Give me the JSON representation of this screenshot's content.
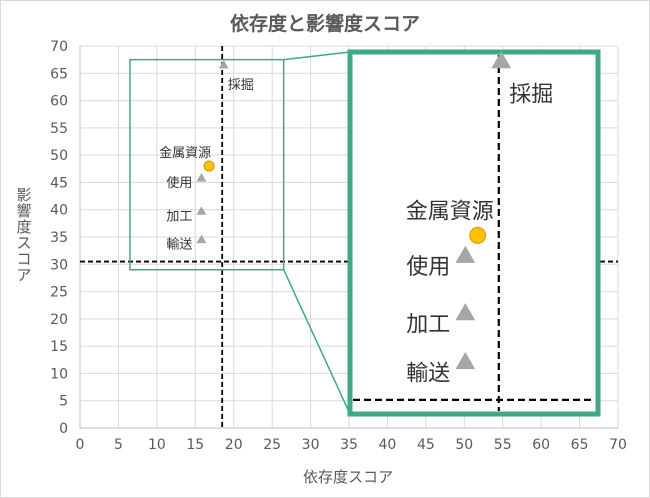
{
  "chart_data": {
    "type": "scatter",
    "title": "依存度と影響度スコア",
    "xlabel": "依存度スコア",
    "ylabel": "影響度スコア",
    "xlim": [
      0,
      70
    ],
    "ylim": [
      0,
      70
    ],
    "xticks": [
      0,
      5,
      10,
      15,
      20,
      25,
      30,
      35,
      40,
      45,
      50,
      55,
      60,
      65,
      70
    ],
    "yticks": [
      0,
      5,
      10,
      15,
      20,
      25,
      30,
      35,
      40,
      45,
      50,
      55,
      60,
      65,
      70
    ],
    "grid": true,
    "reference_lines": {
      "x": 18.5,
      "y": 30.5
    },
    "points": [
      {
        "label": "採掘",
        "x": 18.7,
        "y": 66.5,
        "marker": "triangle",
        "color": "#a6a6a6"
      },
      {
        "label": "金属資源",
        "x": 16.8,
        "y": 48.0,
        "marker": "circle",
        "color": "#ffc000"
      },
      {
        "label": "使用",
        "x": 15.8,
        "y": 45.8,
        "marker": "triangle",
        "color": "#a6a6a6"
      },
      {
        "label": "加工",
        "x": 15.8,
        "y": 39.7,
        "marker": "triangle",
        "color": "#a6a6a6"
      },
      {
        "label": "輸送",
        "x": 15.8,
        "y": 34.5,
        "marker": "triangle",
        "color": "#a6a6a6"
      }
    ],
    "zoom_inset": {
      "source_x": [
        6.5,
        26.5
      ],
      "source_y": [
        29,
        67.5
      ],
      "frame_color": "#3daa80"
    }
  }
}
